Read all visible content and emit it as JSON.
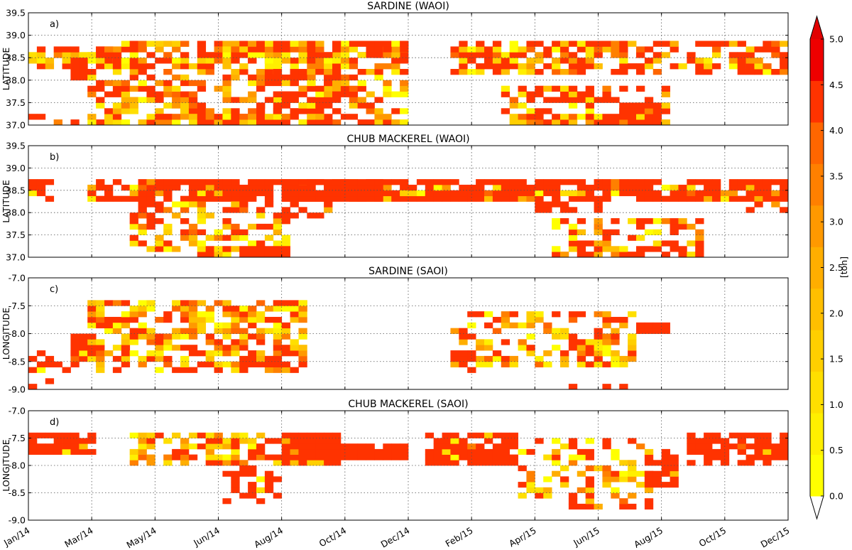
{
  "chart_data": [
    {
      "type": "heatmap",
      "panel_label": "a)",
      "title": "SARDINE (WAOI)",
      "ylabel": "LATITUDE",
      "ylim": [
        37.0,
        39.5
      ],
      "yticks": [
        "37.0",
        "37.5",
        "38.0",
        "38.5",
        "39.0",
        "39.5"
      ],
      "grid": true,
      "cell_size": {
        "x_days": 8,
        "y_deg": 0.125
      },
      "blocks": [
        {
          "t0": 0,
          "t1": 88,
          "y0": 38.25,
          "y1": 38.75,
          "density": 0.75,
          "bias": 0.55
        },
        {
          "t0": 0,
          "t1": 88,
          "y0": 37.0,
          "y1": 37.25,
          "density": 0.35,
          "bias": 0.5
        },
        {
          "t0": 40,
          "t1": 56,
          "y0": 38.0,
          "y1": 38.5,
          "density": 0.9,
          "bias": 0.95
        },
        {
          "t0": 56,
          "t1": 360,
          "y0": 37.0,
          "y1": 38.875,
          "density": 0.5,
          "bias": 0.4
        },
        {
          "t0": 120,
          "t1": 360,
          "y0": 38.375,
          "y1": 38.875,
          "density": 0.7,
          "bias": 0.5
        },
        {
          "t0": 120,
          "t1": 288,
          "y0": 37.0,
          "y1": 37.25,
          "density": 0.9,
          "bias": 0.4
        },
        {
          "t0": 208,
          "t1": 296,
          "y0": 37.25,
          "y1": 38.25,
          "density": 0.5,
          "bias": 0.75
        },
        {
          "t0": 336,
          "t1": 360,
          "y0": 38.625,
          "y1": 38.875,
          "density": 0.9,
          "bias": 0.95
        },
        {
          "t0": 400,
          "t1": 720,
          "y0": 38.125,
          "y1": 38.875,
          "density": 0.65,
          "bias": 0.5
        },
        {
          "t0": 448,
          "t1": 608,
          "y0": 37.25,
          "y1": 37.875,
          "density": 0.55,
          "bias": 0.7
        },
        {
          "t0": 456,
          "t1": 608,
          "y0": 37.0,
          "y1": 37.25,
          "density": 0.9,
          "bias": 0.45
        },
        {
          "t0": 560,
          "t1": 608,
          "y0": 37.25,
          "y1": 37.5,
          "density": 0.9,
          "bias": 0.95
        }
      ]
    },
    {
      "type": "heatmap",
      "panel_label": "b)",
      "title": "CHUB MACKEREL (WAOI)",
      "ylabel": "LATITUDE",
      "ylim": [
        37.0,
        39.5
      ],
      "yticks": [
        "37.0",
        "37.5",
        "38.0",
        "38.5",
        "39.0",
        "39.5"
      ],
      "grid": true,
      "cell_size": {
        "x_days": 8,
        "y_deg": 0.125
      },
      "blocks": [
        {
          "t0": 0,
          "t1": 24,
          "y0": 38.25,
          "y1": 38.75,
          "density": 0.85,
          "bias": 0.9
        },
        {
          "t0": 56,
          "t1": 400,
          "y0": 38.25,
          "y1": 38.75,
          "density": 0.8,
          "bias": 0.8
        },
        {
          "t0": 96,
          "t1": 248,
          "y0": 37.0,
          "y1": 38.25,
          "density": 0.45,
          "bias": 0.4
        },
        {
          "t0": 200,
          "t1": 248,
          "y0": 37.0,
          "y1": 37.25,
          "density": 0.9,
          "bias": 0.95
        },
        {
          "t0": 240,
          "t1": 336,
          "y0": 38.25,
          "y1": 38.75,
          "density": 0.95,
          "bias": 0.97
        },
        {
          "t0": 240,
          "t1": 288,
          "y0": 37.75,
          "y1": 38.25,
          "density": 0.35,
          "bias": 0.9
        },
        {
          "t0": 344,
          "t1": 384,
          "y0": 38.375,
          "y1": 38.75,
          "density": 0.35,
          "bias": 0.6
        },
        {
          "t0": 400,
          "t1": 720,
          "y0": 38.25,
          "y1": 38.75,
          "density": 0.85,
          "bias": 0.85
        },
        {
          "t0": 480,
          "t1": 544,
          "y0": 38.0,
          "y1": 38.25,
          "density": 0.7,
          "bias": 0.95
        },
        {
          "t0": 496,
          "t1": 640,
          "y0": 37.0,
          "y1": 37.875,
          "density": 0.55,
          "bias": 0.6
        },
        {
          "t0": 680,
          "t1": 720,
          "y0": 38.0,
          "y1": 38.25,
          "density": 0.5,
          "bias": 0.5
        }
      ]
    },
    {
      "type": "heatmap",
      "panel_label": "c)",
      "title": "SARDINE (SAOI)",
      "ylabel": "LONGITUDE",
      "ylim": [
        -9.0,
        -7.0
      ],
      "yticks": [
        "-9.0",
        "-8.5",
        "-8.0",
        "-7.5",
        "-7.0"
      ],
      "grid": true,
      "cell_size": {
        "x_days": 8,
        "y_deg": 0.1
      },
      "blocks": [
        {
          "t0": 0,
          "t1": 48,
          "y0": -9.0,
          "y1": -8.3,
          "density": 0.35,
          "bias": 0.85
        },
        {
          "t0": 40,
          "t1": 64,
          "y0": -8.5,
          "y1": -8.0,
          "density": 0.95,
          "bias": 0.9
        },
        {
          "t0": 56,
          "t1": 264,
          "y0": -8.7,
          "y1": -7.4,
          "density": 0.6,
          "bias": 0.3
        },
        {
          "t0": 200,
          "t1": 240,
          "y0": -8.6,
          "y1": -8.4,
          "density": 0.9,
          "bias": 0.9
        },
        {
          "t0": 232,
          "t1": 264,
          "y0": -7.6,
          "y1": -7.4,
          "density": 0.9,
          "bias": 0.6
        },
        {
          "t0": 400,
          "t1": 576,
          "y0": -8.6,
          "y1": -7.6,
          "density": 0.5,
          "bias": 0.3
        },
        {
          "t0": 400,
          "t1": 424,
          "y0": -8.7,
          "y1": -8.3,
          "density": 0.7,
          "bias": 0.95
        },
        {
          "t0": 520,
          "t1": 560,
          "y0": -8.6,
          "y1": -8.0,
          "density": 0.5,
          "bias": 0.35
        },
        {
          "t0": 576,
          "t1": 608,
          "y0": -8.0,
          "y1": -7.8,
          "density": 0.9,
          "bias": 0.95
        },
        {
          "t0": 512,
          "t1": 568,
          "y0": -9.0,
          "y1": -8.9,
          "density": 0.6,
          "bias": 0.8
        }
      ]
    },
    {
      "type": "heatmap",
      "panel_label": "d)",
      "title": "CHUB MACKEREL (SAOI)",
      "ylabel": "LONGITUDE",
      "ylim": [
        -9.0,
        -7.0
      ],
      "yticks": [
        "-9.0",
        "-8.5",
        "-8.0",
        "-7.5",
        "-7.0"
      ],
      "grid": true,
      "cell_size": {
        "x_days": 8,
        "y_deg": 0.1
      },
      "blocks": [
        {
          "t0": 0,
          "t1": 64,
          "y0": -7.8,
          "y1": -7.4,
          "density": 0.9,
          "bias": 0.97
        },
        {
          "t0": 96,
          "t1": 240,
          "y0": -8.0,
          "y1": -7.4,
          "density": 0.55,
          "bias": 0.4
        },
        {
          "t0": 184,
          "t1": 240,
          "y0": -8.7,
          "y1": -8.0,
          "density": 0.45,
          "bias": 0.85
        },
        {
          "t0": 240,
          "t1": 296,
          "y0": -8.0,
          "y1": -7.4,
          "density": 0.95,
          "bias": 0.93
        },
        {
          "t0": 296,
          "t1": 360,
          "y0": -7.9,
          "y1": -7.6,
          "density": 0.95,
          "bias": 0.97
        },
        {
          "t0": 376,
          "t1": 464,
          "y0": -8.0,
          "y1": -7.4,
          "density": 0.85,
          "bias": 0.95
        },
        {
          "t0": 464,
          "t1": 592,
          "y0": -8.8,
          "y1": -7.5,
          "density": 0.4,
          "bias": 0.35
        },
        {
          "t0": 584,
          "t1": 616,
          "y0": -8.4,
          "y1": -7.7,
          "density": 0.7,
          "bias": 0.95
        },
        {
          "t0": 624,
          "t1": 720,
          "y0": -8.0,
          "y1": -7.4,
          "density": 0.7,
          "bias": 0.97
        }
      ]
    }
  ],
  "x_axis": {
    "range_days": [
      0,
      720
    ],
    "ticks": [
      {
        "day": 0,
        "label": "Jan/14"
      },
      {
        "day": 60,
        "label": "Mar/14"
      },
      {
        "day": 120,
        "label": "May/14"
      },
      {
        "day": 180,
        "label": "Jun/14"
      },
      {
        "day": 240,
        "label": "Aug/14"
      },
      {
        "day": 300,
        "label": "Oct/14"
      },
      {
        "day": 360,
        "label": "Dec/14"
      },
      {
        "day": 420,
        "label": "Feb/15"
      },
      {
        "day": 480,
        "label": "Apr/15"
      },
      {
        "day": 540,
        "label": "Jun/15"
      },
      {
        "day": 600,
        "label": "Aug/15"
      },
      {
        "day": 660,
        "label": "Oct/15"
      },
      {
        "day": 720,
        "label": "Dec/15"
      }
    ]
  },
  "colorbar": {
    "label": "[ton]",
    "min": 0.0,
    "max": 5.0,
    "ticks": [
      "0.0",
      "0.5",
      "1.0",
      "1.5",
      "2.0",
      "2.5",
      "3.0",
      "3.5",
      "4.0",
      "4.5",
      "5.0"
    ],
    "colors": [
      "#ffff00",
      "#ffef00",
      "#ffdf00",
      "#ffcf00",
      "#ffbf00",
      "#ffae00",
      "#ff9900",
      "#ff8000",
      "#ff6600",
      "#ff3300",
      "#ee0000"
    ],
    "extend": "both"
  }
}
